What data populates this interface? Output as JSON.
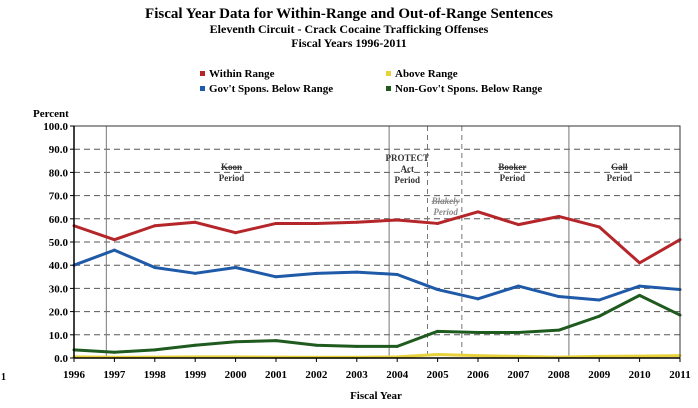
{
  "chart_data": {
    "type": "line",
    "title": "Fiscal Year Data for Within-Range and Out-of-Range Sentences",
    "subtitle_1": "Eleventh Circuit - Crack Cocaine Trafficking Offenses",
    "subtitle_2": "Fiscal Years 1996-2011",
    "ylabel": "Percent",
    "xlabel": "Fiscal Year",
    "ylim": [
      0,
      100
    ],
    "yticks": [
      "0.0",
      "10.0",
      "20.0",
      "30.0",
      "40.0",
      "50.0",
      "60.0",
      "70.0",
      "80.0",
      "90.0",
      "100.0"
    ],
    "x": [
      "1996",
      "1997",
      "1998",
      "1999",
      "2000",
      "2001",
      "2002",
      "2003",
      "2004",
      "2005",
      "2006",
      "2007",
      "2008",
      "2009",
      "2010",
      "2011"
    ],
    "series": [
      {
        "name": "Within Range",
        "color": "#b5262a",
        "values": [
          57,
          51,
          57,
          58.5,
          54,
          58,
          58,
          58.5,
          59.5,
          58,
          63,
          57.5,
          61,
          56.5,
          41,
          51
        ]
      },
      {
        "name": "Above Range",
        "color": "#e8d23c",
        "values": [
          0.5,
          0.3,
          0.4,
          0.5,
          0.5,
          0.4,
          0.3,
          0.3,
          0.5,
          1.5,
          1.0,
          0.7,
          0.4,
          0.7,
          0.8,
          1.0
        ]
      },
      {
        "name": "Gov't Spons. Below Range",
        "color": "#1f5aa8",
        "values": [
          40,
          46.5,
          39,
          36.5,
          39,
          35,
          36.5,
          37,
          36,
          29.5,
          25.5,
          31,
          26.5,
          25,
          31,
          29.5
        ]
      },
      {
        "name": "Non-Gov't Spons. Below Range",
        "color": "#1f5a1f",
        "values": [
          3.5,
          2.5,
          3.5,
          5.5,
          7,
          7.5,
          5.5,
          5,
          5,
          11.5,
          11,
          11,
          12,
          18,
          27,
          18.5
        ]
      }
    ],
    "periods": [
      {
        "line1": "Koon",
        "line2": "Period"
      },
      {
        "line1": "PROTECT",
        "line2": "Act",
        "line3": "Period"
      },
      {
        "line1": "Blakely",
        "line2": "Period"
      },
      {
        "line1": "Booker",
        "line2": "Period"
      },
      {
        "line1": "Gall",
        "line2": "Period"
      }
    ],
    "corner_label": "1",
    "grid": true,
    "legend_position": "top"
  }
}
